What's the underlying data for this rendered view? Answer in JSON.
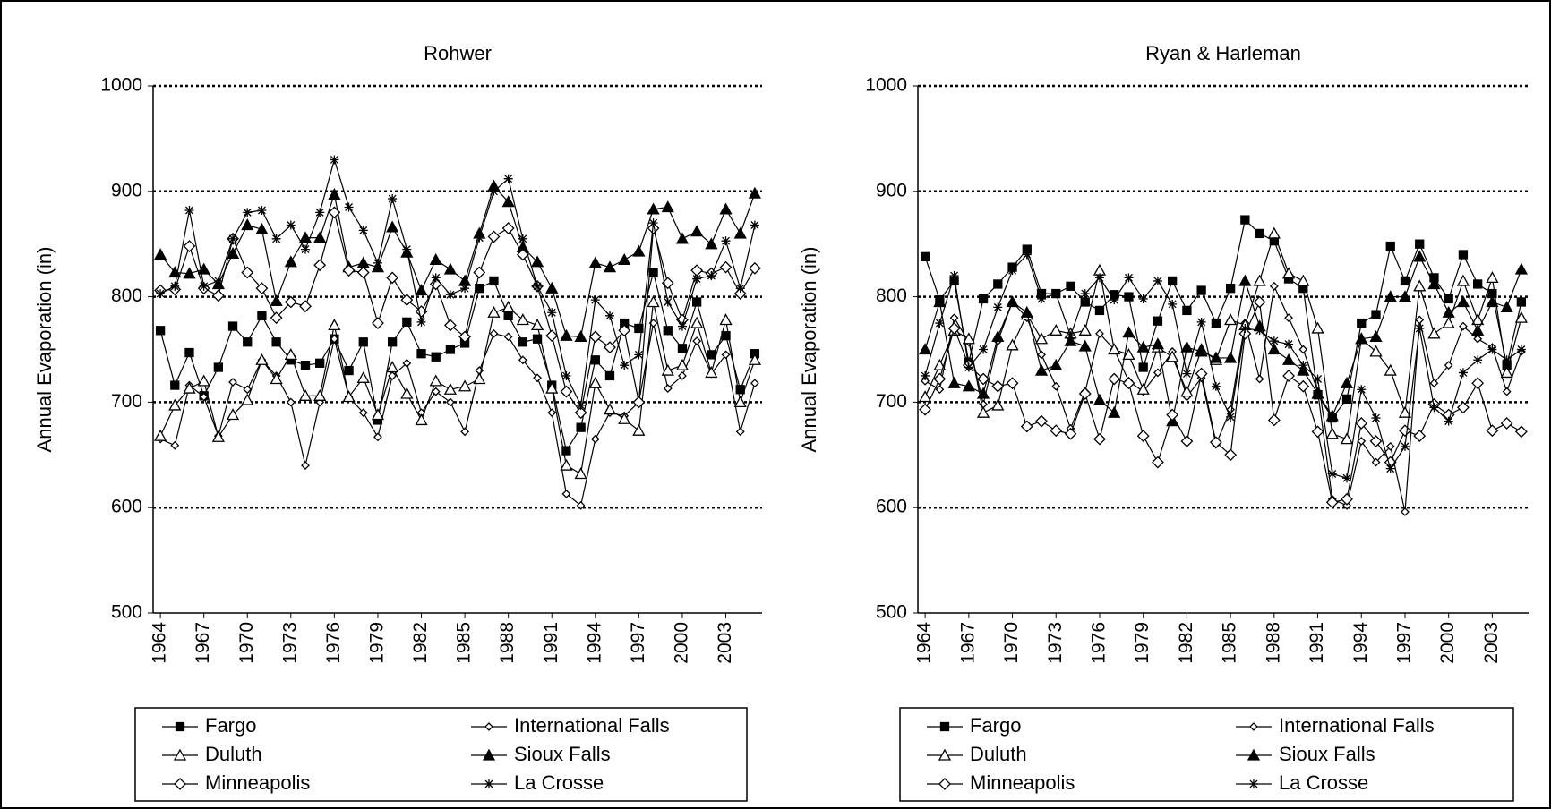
{
  "chart_data": [
    {
      "type": "line",
      "title": "Rohwer",
      "y_label": "Annual Evaporation (in)",
      "x": [
        1964,
        1965,
        1966,
        1967,
        1968,
        1969,
        1970,
        1971,
        1972,
        1973,
        1974,
        1975,
        1976,
        1977,
        1978,
        1979,
        1980,
        1981,
        1982,
        1983,
        1984,
        1985,
        1986,
        1987,
        1988,
        1989,
        1990,
        1991,
        1992,
        1993,
        1994,
        1995,
        1996,
        1997,
        1998,
        1999,
        2000,
        2001,
        2002,
        2003,
        2004,
        2005
      ],
      "xlim": [
        1963.5,
        2005.5
      ],
      "xticks": [
        1964,
        1967,
        1970,
        1973,
        1976,
        1979,
        1982,
        1985,
        1988,
        1991,
        1994,
        1997,
        2000,
        2003
      ],
      "ylim": [
        500,
        1000
      ],
      "yticks": [
        500,
        600,
        700,
        800,
        900,
        1000
      ],
      "grid": true,
      "series": [
        {
          "name": "Fargo",
          "color": "#000000",
          "marker": "square",
          "filled": true,
          "values": [
            768,
            716,
            747,
            706,
            733,
            772,
            757,
            782,
            757,
            740,
            735,
            737,
            760,
            730,
            757,
            683,
            757,
            776,
            746,
            743,
            750,
            756,
            808,
            815,
            782,
            757,
            760,
            716,
            654,
            676,
            740,
            725,
            775,
            770,
            823,
            768,
            751,
            795,
            745,
            763,
            712,
            746
          ]
        },
        {
          "name": "International Falls",
          "color": "#000000",
          "marker": "small-diamond",
          "filled": false,
          "values": [
            665,
            659,
            716,
            705,
            668,
            719,
            712,
            740,
            725,
            700,
            640,
            700,
            760,
            705,
            690,
            667,
            725,
            737,
            690,
            710,
            700,
            672,
            730,
            765,
            762,
            740,
            723,
            690,
            613,
            602,
            665,
            690,
            687,
            700,
            775,
            713,
            725,
            758,
            727,
            745,
            672,
            718
          ]
        },
        {
          "name": "Duluth",
          "color": "#000000",
          "marker": "triangle",
          "filled": false,
          "values": [
            668,
            697,
            713,
            720,
            667,
            688,
            702,
            740,
            722,
            745,
            706,
            706,
            773,
            705,
            723,
            688,
            733,
            708,
            683,
            720,
            712,
            715,
            722,
            785,
            790,
            778,
            773,
            713,
            640,
            632,
            718,
            693,
            684,
            673,
            795,
            730,
            735,
            775,
            728,
            778,
            700,
            740
          ]
        },
        {
          "name": "Sioux Falls",
          "color": "#000000",
          "marker": "triangle",
          "filled": true,
          "values": [
            840,
            823,
            822,
            826,
            812,
            841,
            868,
            864,
            796,
            833,
            856,
            856,
            897,
            828,
            832,
            828,
            866,
            842,
            806,
            835,
            826,
            815,
            860,
            905,
            890,
            847,
            833,
            808,
            763,
            762,
            832,
            828,
            835,
            843,
            883,
            885,
            855,
            862,
            850,
            883,
            860,
            898
          ]
        },
        {
          "name": "Minneapolis",
          "color": "#000000",
          "marker": "diamond",
          "filled": false,
          "values": [
            806,
            807,
            848,
            808,
            801,
            855,
            823,
            808,
            780,
            795,
            791,
            830,
            880,
            825,
            823,
            775,
            818,
            797,
            786,
            812,
            773,
            762,
            823,
            857,
            865,
            840,
            810,
            763,
            710,
            690,
            762,
            752,
            768,
            700,
            865,
            813,
            778,
            825,
            822,
            828,
            803,
            827
          ]
        },
        {
          "name": "La Crosse",
          "color": "#000000",
          "marker": "asterisk",
          "filled": false,
          "values": [
            803,
            810,
            882,
            810,
            815,
            855,
            880,
            882,
            855,
            868,
            845,
            880,
            930,
            885,
            863,
            832,
            893,
            845,
            776,
            818,
            802,
            808,
            856,
            900,
            912,
            855,
            810,
            785,
            725,
            697,
            797,
            782,
            735,
            745,
            870,
            795,
            772,
            817,
            820,
            853,
            808,
            868
          ]
        }
      ]
    },
    {
      "type": "line",
      "title": "Ryan & Harleman",
      "y_label": "Annual Evaporation (in)",
      "x": [
        1964,
        1965,
        1966,
        1967,
        1968,
        1969,
        1970,
        1971,
        1972,
        1973,
        1974,
        1975,
        1976,
        1977,
        1978,
        1979,
        1980,
        1981,
        1982,
        1983,
        1984,
        1985,
        1986,
        1987,
        1988,
        1989,
        1990,
        1991,
        1992,
        1993,
        1994,
        1995,
        1996,
        1997,
        1998,
        1999,
        2000,
        2001,
        2002,
        2003,
        2004,
        2005
      ],
      "xlim": [
        1963.5,
        2005.5
      ],
      "xticks": [
        1964,
        1967,
        1970,
        1973,
        1976,
        1979,
        1982,
        1985,
        1988,
        1991,
        1994,
        1997,
        2000,
        2003
      ],
      "ylim": [
        500,
        1000
      ],
      "yticks": [
        500,
        600,
        700,
        800,
        900,
        1000
      ],
      "grid": true,
      "series": [
        {
          "name": "Fargo",
          "color": "#000000",
          "marker": "square",
          "filled": true,
          "values": [
            838,
            797,
            815,
            738,
            798,
            812,
            828,
            845,
            803,
            803,
            810,
            795,
            787,
            802,
            800,
            733,
            777,
            815,
            787,
            806,
            775,
            808,
            873,
            860,
            853,
            817,
            808,
            707,
            685,
            703,
            775,
            783,
            848,
            815,
            850,
            818,
            798,
            840,
            812,
            803,
            735,
            795
          ]
        },
        {
          "name": "International Falls",
          "color": "#000000",
          "marker": "small-diamond",
          "filled": false,
          "values": [
            720,
            712,
            780,
            757,
            698,
            758,
            795,
            780,
            745,
            715,
            675,
            710,
            765,
            750,
            720,
            710,
            728,
            748,
            705,
            723,
            660,
            693,
            775,
            722,
            810,
            780,
            750,
            710,
            608,
            602,
            663,
            643,
            658,
            596,
            778,
            718,
            735,
            772,
            760,
            752,
            710,
            748
          ]
        },
        {
          "name": "Duluth",
          "color": "#000000",
          "marker": "triangle",
          "filled": false,
          "values": [
            705,
            735,
            768,
            760,
            690,
            697,
            754,
            783,
            760,
            768,
            765,
            768,
            825,
            750,
            745,
            712,
            752,
            743,
            710,
            750,
            740,
            778,
            773,
            815,
            860,
            822,
            815,
            770,
            670,
            665,
            760,
            748,
            730,
            690,
            810,
            765,
            775,
            815,
            778,
            818,
            728,
            780
          ]
        },
        {
          "name": "Sioux Falls",
          "color": "#000000",
          "marker": "triangle",
          "filled": true,
          "values": [
            750,
            795,
            718,
            715,
            708,
            762,
            795,
            785,
            730,
            735,
            758,
            753,
            702,
            690,
            766,
            752,
            755,
            682,
            752,
            748,
            742,
            742,
            815,
            772,
            750,
            740,
            730,
            708,
            687,
            718,
            760,
            762,
            800,
            800,
            838,
            812,
            785,
            795,
            768,
            795,
            790,
            826
          ]
        },
        {
          "name": "Minneapolis",
          "color": "#000000",
          "marker": "diamond",
          "filled": false,
          "values": [
            693,
            722,
            770,
            735,
            722,
            715,
            718,
            677,
            682,
            673,
            670,
            708,
            665,
            722,
            718,
            668,
            643,
            688,
            663,
            727,
            662,
            650,
            765,
            795,
            683,
            725,
            715,
            672,
            605,
            608,
            680,
            663,
            643,
            673,
            668,
            698,
            688,
            695,
            718,
            673,
            680,
            672
          ]
        },
        {
          "name": "La Crosse",
          "color": "#000000",
          "marker": "asterisk",
          "filled": false,
          "values": [
            725,
            775,
            820,
            733,
            750,
            790,
            825,
            840,
            798,
            803,
            763,
            803,
            818,
            797,
            818,
            798,
            815,
            793,
            727,
            776,
            715,
            686,
            770,
            768,
            758,
            755,
            735,
            722,
            632,
            628,
            712,
            685,
            637,
            658,
            770,
            695,
            682,
            728,
            740,
            750,
            740,
            750
          ]
        }
      ]
    }
  ]
}
